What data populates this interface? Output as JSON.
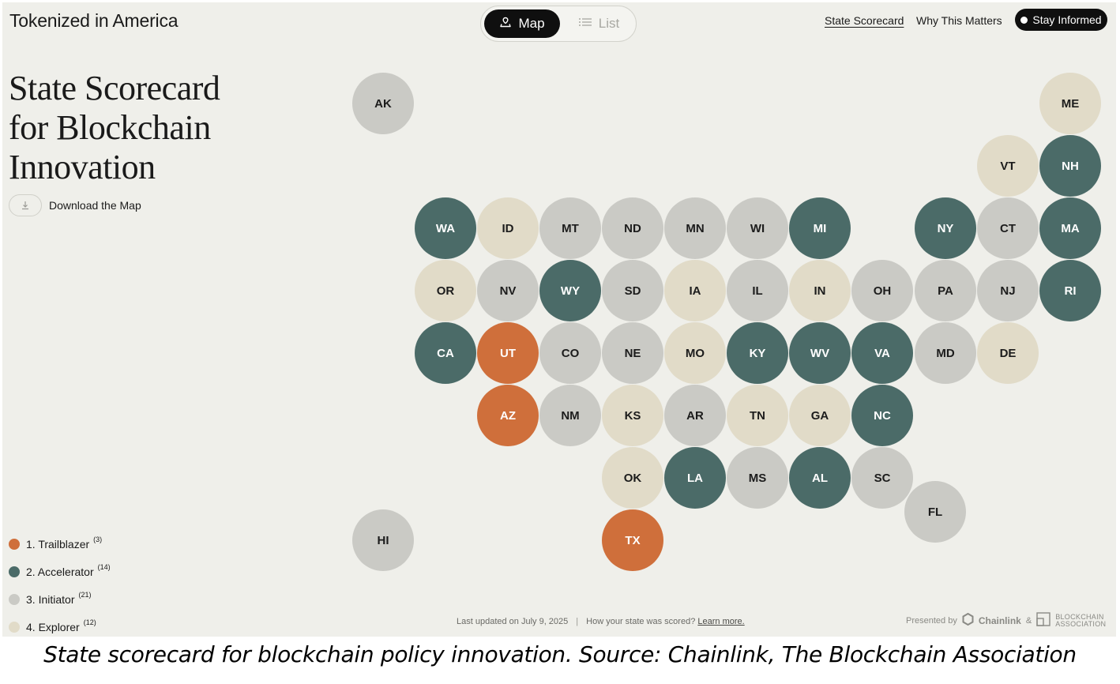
{
  "header": {
    "brand": "Tokenized in America",
    "view_toggle": {
      "map_label": "Map",
      "list_label": "List",
      "active": "Map"
    },
    "nav": {
      "scorecard_label": "State Scorecard",
      "why_label": "Why This Matters",
      "stay_label": "Stay Informed"
    }
  },
  "sidebar": {
    "title_lines": [
      "State Scorecard",
      "for Blockchain",
      "Innovation"
    ],
    "download_label": "Download the Map"
  },
  "colors": {
    "trailblazer": "#cf6f3b",
    "accelerator": "#4b6b68",
    "initiator": "#cacac5",
    "explorer": "#e1dbc8"
  },
  "legend": [
    {
      "label": "1. Trailblazer",
      "count": "(3)",
      "tier": 1
    },
    {
      "label": "2. Accelerator",
      "count": "(14)",
      "tier": 2
    },
    {
      "label": "3. Initiator",
      "count": "(21)",
      "tier": 3
    },
    {
      "label": "4. Explorer",
      "count": "(12)",
      "tier": 4
    }
  ],
  "states": [
    {
      "abbr": "AK",
      "tier": 3
    },
    {
      "abbr": "ME",
      "tier": 4
    },
    {
      "abbr": "VT",
      "tier": 4
    },
    {
      "abbr": "NH",
      "tier": 2
    },
    {
      "abbr": "WA",
      "tier": 2
    },
    {
      "abbr": "ID",
      "tier": 4
    },
    {
      "abbr": "MT",
      "tier": 3
    },
    {
      "abbr": "ND",
      "tier": 3
    },
    {
      "abbr": "MN",
      "tier": 3
    },
    {
      "abbr": "WI",
      "tier": 3
    },
    {
      "abbr": "MI",
      "tier": 2
    },
    {
      "abbr": "NY",
      "tier": 2
    },
    {
      "abbr": "CT",
      "tier": 3
    },
    {
      "abbr": "MA",
      "tier": 2
    },
    {
      "abbr": "OR",
      "tier": 4
    },
    {
      "abbr": "NV",
      "tier": 3
    },
    {
      "abbr": "WY",
      "tier": 2
    },
    {
      "abbr": "SD",
      "tier": 3
    },
    {
      "abbr": "IA",
      "tier": 4
    },
    {
      "abbr": "IL",
      "tier": 3
    },
    {
      "abbr": "IN",
      "tier": 4
    },
    {
      "abbr": "OH",
      "tier": 3
    },
    {
      "abbr": "PA",
      "tier": 3
    },
    {
      "abbr": "NJ",
      "tier": 3
    },
    {
      "abbr": "RI",
      "tier": 2
    },
    {
      "abbr": "CA",
      "tier": 2
    },
    {
      "abbr": "UT",
      "tier": 1
    },
    {
      "abbr": "CO",
      "tier": 3
    },
    {
      "abbr": "NE",
      "tier": 3
    },
    {
      "abbr": "MO",
      "tier": 4
    },
    {
      "abbr": "KY",
      "tier": 2
    },
    {
      "abbr": "WV",
      "tier": 2
    },
    {
      "abbr": "VA",
      "tier": 2
    },
    {
      "abbr": "MD",
      "tier": 3
    },
    {
      "abbr": "DE",
      "tier": 4
    },
    {
      "abbr": "AZ",
      "tier": 1
    },
    {
      "abbr": "NM",
      "tier": 3
    },
    {
      "abbr": "KS",
      "tier": 4
    },
    {
      "abbr": "AR",
      "tier": 3
    },
    {
      "abbr": "TN",
      "tier": 4
    },
    {
      "abbr": "GA",
      "tier": 4
    },
    {
      "abbr": "NC",
      "tier": 2
    },
    {
      "abbr": "OK",
      "tier": 4
    },
    {
      "abbr": "LA",
      "tier": 2
    },
    {
      "abbr": "MS",
      "tier": 3
    },
    {
      "abbr": "AL",
      "tier": 2
    },
    {
      "abbr": "SC",
      "tier": 3
    },
    {
      "abbr": "FL",
      "tier": 3
    },
    {
      "abbr": "HI",
      "tier": 3
    },
    {
      "abbr": "TX",
      "tier": 1
    }
  ],
  "footer": {
    "updated": "Last updated on July 9, 2025",
    "scored_question": "How your state was scored?",
    "learn_more": "Learn more.",
    "presented_by": "Presented by",
    "chainlink": "Chainlink",
    "amp": "&",
    "ba_line1": "BLOCKCHAIN",
    "ba_line2": "ASSOCIATION"
  },
  "caption": "State scorecard for blockchain policy innovation. Source: Chainlink, The Blockchain Association"
}
